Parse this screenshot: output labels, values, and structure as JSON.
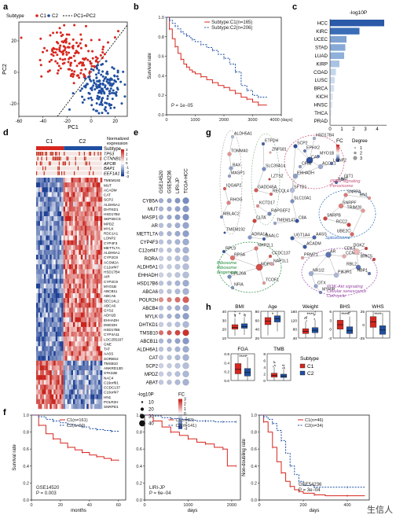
{
  "panel_letters": {
    "a": "a",
    "b": "b",
    "c": "c",
    "d": "d",
    "e": "e",
    "f": "f",
    "g": "g",
    "h": "h"
  },
  "watermark": "生信人",
  "chart_data": [
    {
      "panel": "a",
      "type": "scatter",
      "legend": {
        "title": "Subtype",
        "c1": "C1",
        "c2": "C2",
        "line": "PC1=PC2"
      },
      "xlabel": "PC1",
      "ylabel": "PC2",
      "xticks": [
        "-60",
        "-40",
        "-20",
        "0",
        "20"
      ],
      "xlim": [
        -60,
        30
      ],
      "yticks": [
        "-20",
        "0",
        "20"
      ],
      "ylim": [
        -28,
        32
      ],
      "colors": {
        "c1": "#d7261e",
        "c2": "#1f4fa0"
      },
      "series": [
        {
          "name": "C1",
          "count": 165,
          "x_range": [
            -45,
            12
          ],
          "y_range": [
            -10,
            28
          ]
        },
        {
          "name": "C2",
          "count": 206,
          "x_range": [
            -12,
            25
          ],
          "y_range": [
            -26,
            8
          ]
        }
      ]
    },
    {
      "panel": "b",
      "type": "line",
      "ylabel": "Survival rate",
      "xlabel": "",
      "xticks": [
        "0",
        "1000",
        "2000",
        "3000",
        "4000 (days)"
      ],
      "xlim": [
        0,
        4000
      ],
      "yticks": [
        "0.0",
        "0.2",
        "0.4",
        "0.6",
        "0.8",
        "1.0"
      ],
      "ylim": [
        0,
        1
      ],
      "annotation": "P = 1e−05",
      "series": [
        {
          "name": "Subtype:C1(n=165)",
          "color": "#d7261e",
          "x": [
            0,
            100,
            200,
            300,
            400,
            500,
            600,
            700,
            800,
            900,
            1000,
            1200,
            1400,
            1600,
            1800,
            2000,
            2200,
            2400,
            2600,
            2800,
            3000,
            3200,
            3500
          ],
          "y": [
            1.0,
            0.88,
            0.78,
            0.7,
            0.63,
            0.57,
            0.52,
            0.49,
            0.46,
            0.44,
            0.42,
            0.39,
            0.36,
            0.33,
            0.3,
            0.28,
            0.25,
            0.22,
            0.18,
            0.16,
            0.13,
            0.1,
            0.1
          ]
        },
        {
          "name": "Subtype:C2(n=206)",
          "color": "#1f4fa0",
          "x": [
            0,
            100,
            200,
            300,
            400,
            500,
            600,
            700,
            800,
            900,
            1000,
            1200,
            1400,
            1600,
            1800,
            2000,
            2200,
            2400,
            2600,
            2800,
            3000,
            3200,
            3500
          ],
          "y": [
            1.0,
            0.97,
            0.94,
            0.91,
            0.88,
            0.85,
            0.83,
            0.81,
            0.79,
            0.77,
            0.75,
            0.72,
            0.69,
            0.66,
            0.62,
            0.58,
            0.52,
            0.44,
            0.3,
            0.25,
            0.2,
            0.18,
            0.18
          ]
        }
      ]
    },
    {
      "panel": "c",
      "type": "bar",
      "title": "-log10P",
      "categories": [
        "HCC",
        "KIRC",
        "UCEC",
        "STAD",
        "LUAD",
        "KIRP",
        "COAD",
        "LUSC",
        "BRCA",
        "KICH",
        "HNSC",
        "THCA",
        "PRAD"
      ],
      "values": [
        4.6,
        2.5,
        1.4,
        1.3,
        1.2,
        0.8,
        0.5,
        0.4,
        0.35,
        0.25,
        0.2,
        0.12,
        0.1
      ],
      "xticks": [
        "0",
        "1",
        "2",
        "3",
        "4"
      ],
      "xlim": [
        0,
        4.8
      ],
      "colors": [
        "#2a5aa8",
        "#3a6db6",
        "#7ea2d2",
        "#86a9d6",
        "#8eb0da",
        "#a9c3e3",
        "#c3d6ec",
        "#cddcf0",
        "#d3e1f2",
        "#dde8f5",
        "#e2ebf6",
        "#e8eff8",
        "#ecf2f9"
      ]
    },
    {
      "panel": "d",
      "type": "heatmap",
      "header": {
        "c1": "C1",
        "c2": "C2",
        "subtype": "Subtype"
      },
      "colorbar": {
        "title": "Normalized\nexpression",
        "ticks": [
          "3",
          "2",
          "1",
          "0",
          "-1",
          "-2",
          "-3"
        ]
      },
      "mutations": [
        "TP53",
        "CTNNB1",
        "APOB",
        "BAP1",
        "EEF1A1"
      ],
      "genes": [
        "TMEM192",
        "MUT",
        "ACADM",
        "CAT",
        "SCP2",
        "ALDH5A1",
        "DHTKD1",
        "HSD17B4",
        "SEPSECS",
        "MPDZ",
        "MYLK",
        "RDC1A1",
        "LONP2",
        "CYP4F3",
        "METTL7A",
        "ALDH6A1",
        "CYP2C8",
        "ACSM2A",
        "C12orf47",
        "HSD17B4",
        "AIR",
        "CYP2C9",
        "MYO1B",
        "ABCB11",
        "ABCA6",
        "SEC14L2",
        "ABCA6",
        "GYS2",
        "ADH1B",
        "EHHADH",
        "DMGDH",
        "HSD17B6",
        "CYP4A11",
        "LOC255167",
        "GNE",
        "TAT",
        "AASS",
        "SORBS2",
        "TMSB10",
        "ANKRD13D",
        "STK32B",
        "NAC4",
        "C19orf61",
        "CCDC137",
        "C10orf47",
        "HN1",
        "POLR2H",
        "SNRPD1"
      ]
    },
    {
      "panel": "e",
      "type": "dot",
      "columns": [
        "GSE14520",
        "GSE54236",
        "LIRI-JP",
        "TCGA-HCC"
      ],
      "rows": [
        "CYB5A",
        "MUT",
        "MASP1",
        "AR",
        "METTL7A",
        "CYP4F3",
        "C12orf47",
        "RORA",
        "ALDH5A1",
        "EHHADH",
        "HSD17B6",
        "ABCA6",
        "POLR2H",
        "ABCB4",
        "MYLK",
        "DHTKD1",
        "TMSB10",
        "ABCB11",
        "ALDH6A1",
        "CAT",
        "SCP2",
        "MPDZ",
        "ABAT"
      ],
      "fc_row": [
        -1.8,
        -1.6,
        -1.7,
        -1.4,
        -1.5,
        -1.3,
        -1.2,
        -1.1,
        -1.0,
        -1.0,
        -1.3,
        -1.2,
        2.2,
        -1.4,
        -1.5,
        -1.1,
        2.8,
        -1.6,
        -1.3,
        -1.2,
        -1.0,
        -1.1,
        -1.2
      ],
      "size_col": [
        0.6,
        0.6,
        0.75,
        1.0
      ],
      "legend_size": {
        "title": "-log10P",
        "labels": [
          "10",
          "20",
          "30",
          "40"
        ]
      },
      "legend_fc": {
        "title": "FC",
        "labels": [
          "3",
          "2",
          "1",
          "0",
          "-1",
          "-2",
          "-3"
        ]
      }
    },
    {
      "panel": "g",
      "type": "network",
      "legend": {
        "title": "FC",
        "degree_title": "Degree",
        "degree_labels": [
          "1",
          "2",
          "3"
        ]
      },
      "modules": [
        {
          "label": "PPAR signaling\nPeroxisome",
          "color": "#c8507a"
        },
        {
          "label": "Ribosome\nRibosome\nbiogenesis",
          "color": "#1e8a3a"
        },
        {
          "label": "Spliceosome",
          "color": "#2a6ab8"
        },
        {
          "label": "PI3K-Akt signaling\nCellular senescence\nCell cycle",
          "color": "#9a49a8"
        }
      ],
      "nodes": [
        "ALDH5A1",
        "TOMM40",
        "BAX",
        "MASP1",
        "IQGAP2",
        "RHOG",
        "MBLAC2",
        "TMEM192",
        "ETFDH",
        "ZNF581",
        "SLC39A14",
        "LZTS2",
        "GADD45A",
        "RECQL4",
        "KCTD17",
        "RAPGEF2",
        "CLTA",
        "HSD17B4",
        "SCP2",
        "EPHX2",
        "CAT",
        "MYO1B",
        "CFL2",
        "ACOX1",
        "LONP2",
        "EHHADH",
        "GIT1",
        "ABAT",
        "SFTD1",
        "SLC10A1",
        "TMEM147",
        "C8A",
        "HN1",
        "SNRPA",
        "SNRPF",
        "TRIM28",
        "SNRPB",
        "RCC2",
        "UBE2C",
        "UGT1A4",
        "AASS",
        "ACADM",
        "RPL9",
        "RPSA",
        "RPL26A",
        "NFIA",
        "NHP2L1",
        "NOP56",
        "CCDC137",
        "NAP1L1",
        "TCOF1",
        "ADRA1A",
        "BAALC",
        "PRMT1",
        "AR",
        "CCNE1",
        "NR1I2",
        "PIK3R1",
        "OTX",
        "MYRIP",
        "CDK4",
        "RBL2",
        "HBP1",
        "BIRC5",
        "DGKZ"
      ]
    },
    {
      "panel": "h",
      "type": "box",
      "legend": {
        "title": "Subtype",
        "c1": "C1",
        "c2": "C2"
      },
      "colors": {
        "c1": "#d7261e",
        "c2": "#1f4fa0"
      },
      "plots": [
        {
          "title": "BMI",
          "sig": "*",
          "yticks": [
            "10",
            "20",
            "30",
            "40"
          ],
          "c1": {
            "median": 22,
            "q1": 20,
            "q3": 25
          },
          "c2": {
            "median": 23,
            "q1": 21,
            "q3": 26
          }
        },
        {
          "title": "Age",
          "sig": "*",
          "yticks": [
            "20",
            "40",
            "60",
            "80"
          ],
          "c1": {
            "median": 58,
            "q1": 50,
            "q3": 66
          },
          "c2": {
            "median": 63,
            "q1": 56,
            "q3": 70
          }
        },
        {
          "title": "Weight",
          "sig": "****",
          "yticks": [
            "40",
            "80",
            "120",
            "160"
          ],
          "c1": {
            "median": 70,
            "q1": 60,
            "q3": 82
          },
          "c2": {
            "median": 75,
            "q1": 64,
            "q3": 87
          }
        },
        {
          "title": "BHS",
          "sig": "****",
          "yticks": [
            "-3",
            "0",
            "3",
            "6"
          ],
          "c1": {
            "median": 1.5,
            "q1": 0,
            "q3": 3
          },
          "c2": {
            "median": -0.5,
            "q1": -1.5,
            "q3": 0.8
          }
        },
        {
          "title": "WHS",
          "sig": "****",
          "yticks": [
            "-25",
            "0",
            "25"
          ],
          "c1": {
            "median": 5,
            "q1": -5,
            "q3": 15
          },
          "c2": {
            "median": -10,
            "q1": -18,
            "q3": -2
          }
        },
        {
          "title": "FGA",
          "sig": "****",
          "yticks": [
            "0.0",
            "0.2",
            "0.4",
            "0.6"
          ],
          "c1": {
            "median": 0.25,
            "q1": 0.15,
            "q3": 0.38
          },
          "c2": {
            "median": 0.18,
            "q1": 0.1,
            "q3": 0.27
          }
        },
        {
          "title": "TMB",
          "sig": "",
          "yticks": [
            "0",
            "2",
            "4",
            "6",
            "8"
          ],
          "c1": {
            "median": 1.5,
            "q1": 1,
            "q3": 2.2
          },
          "c2": {
            "median": 1.3,
            "q1": 0.9,
            "q3": 1.9
          }
        }
      ]
    },
    {
      "panel": "f1",
      "type": "line",
      "ylabel": "Survival rate",
      "xlabel": "months",
      "xticks": [
        "0",
        "20",
        "40",
        "60"
      ],
      "xlim": [
        0,
        65
      ],
      "yticks": [
        "0.0",
        "0.2",
        "0.4",
        "0.6",
        "0.8",
        "1.0"
      ],
      "ylim": [
        0,
        1
      ],
      "annotation": "GSE14520\nP = 0.003",
      "series": [
        {
          "name": "C1(n=161)",
          "color": "#d7261e",
          "x": [
            0,
            5,
            10,
            15,
            20,
            25,
            30,
            35,
            40,
            45,
            50,
            55,
            60
          ],
          "y": [
            1.0,
            0.88,
            0.78,
            0.72,
            0.67,
            0.62,
            0.59,
            0.56,
            0.53,
            0.51,
            0.49,
            0.47,
            0.46
          ]
        },
        {
          "name": "C2(n=60)",
          "color": "#1f4fa0",
          "x": [
            0,
            5,
            10,
            15,
            20,
            25,
            30,
            35,
            40,
            45,
            50,
            55,
            60
          ],
          "y": [
            1.0,
            0.98,
            0.95,
            0.93,
            0.91,
            0.89,
            0.87,
            0.86,
            0.84,
            0.83,
            0.82,
            0.81,
            0.8
          ]
        }
      ]
    },
    {
      "panel": "f2",
      "type": "line",
      "ylabel": "",
      "xlabel": "days",
      "xticks": [
        "0",
        "1000",
        "2000"
      ],
      "xlim": [
        0,
        2200
      ],
      "yticks": [
        "0.0",
        "0.2",
        "0.4",
        "0.6",
        "0.8",
        "1.0"
      ],
      "ylim": [
        0,
        1
      ],
      "annotation": "LIRI-JP\nP = 6e−04",
      "series": [
        {
          "name": "C1(n=83)",
          "color": "#d7261e",
          "x": [
            0,
            200,
            400,
            600,
            800,
            1000,
            1200,
            1400,
            1600,
            1800,
            1900,
            2100
          ],
          "y": [
            1.0,
            0.93,
            0.86,
            0.8,
            0.76,
            0.72,
            0.68,
            0.66,
            0.62,
            0.6,
            0.4,
            0.4
          ]
        },
        {
          "name": "C2(n=141)",
          "color": "#1f4fa0",
          "x": [
            0,
            200,
            400,
            600,
            800,
            1000,
            1200,
            1400,
            1600,
            1800,
            2000,
            2100
          ],
          "y": [
            1.0,
            0.99,
            0.97,
            0.96,
            0.95,
            0.94,
            0.93,
            0.93,
            0.92,
            0.92,
            0.92,
            0.92
          ]
        }
      ]
    },
    {
      "panel": "f3",
      "type": "line",
      "ylabel": "Non-doubling rate",
      "xlabel": "days",
      "xticks": [
        "0",
        "200",
        "400"
      ],
      "xlim": [
        0,
        500
      ],
      "yticks": [
        "0.0",
        "0.2",
        "0.4",
        "0.6",
        "0.8",
        "1.0"
      ],
      "ylim": [
        0,
        1
      ],
      "annotation": "GSE54236\nP = 3e−04",
      "series": [
        {
          "name": "C1(n=46)",
          "color": "#d7261e",
          "x": [
            0,
            20,
            40,
            60,
            80,
            100,
            120,
            140,
            160,
            180,
            200,
            250,
            300,
            400,
            480
          ],
          "y": [
            1.0,
            0.92,
            0.8,
            0.62,
            0.45,
            0.32,
            0.22,
            0.16,
            0.12,
            0.1,
            0.08,
            0.06,
            0.05,
            0.05,
            0.05
          ]
        },
        {
          "name": "C2(n=34)",
          "color": "#1f4fa0",
          "x": [
            0,
            20,
            40,
            60,
            80,
            100,
            120,
            140,
            160,
            180,
            200,
            250,
            300,
            400,
            480
          ],
          "y": [
            1.0,
            0.98,
            0.95,
            0.9,
            0.82,
            0.7,
            0.55,
            0.4,
            0.3,
            0.22,
            0.17,
            0.15,
            0.15,
            0.15,
            0.15
          ]
        }
      ]
    }
  ]
}
